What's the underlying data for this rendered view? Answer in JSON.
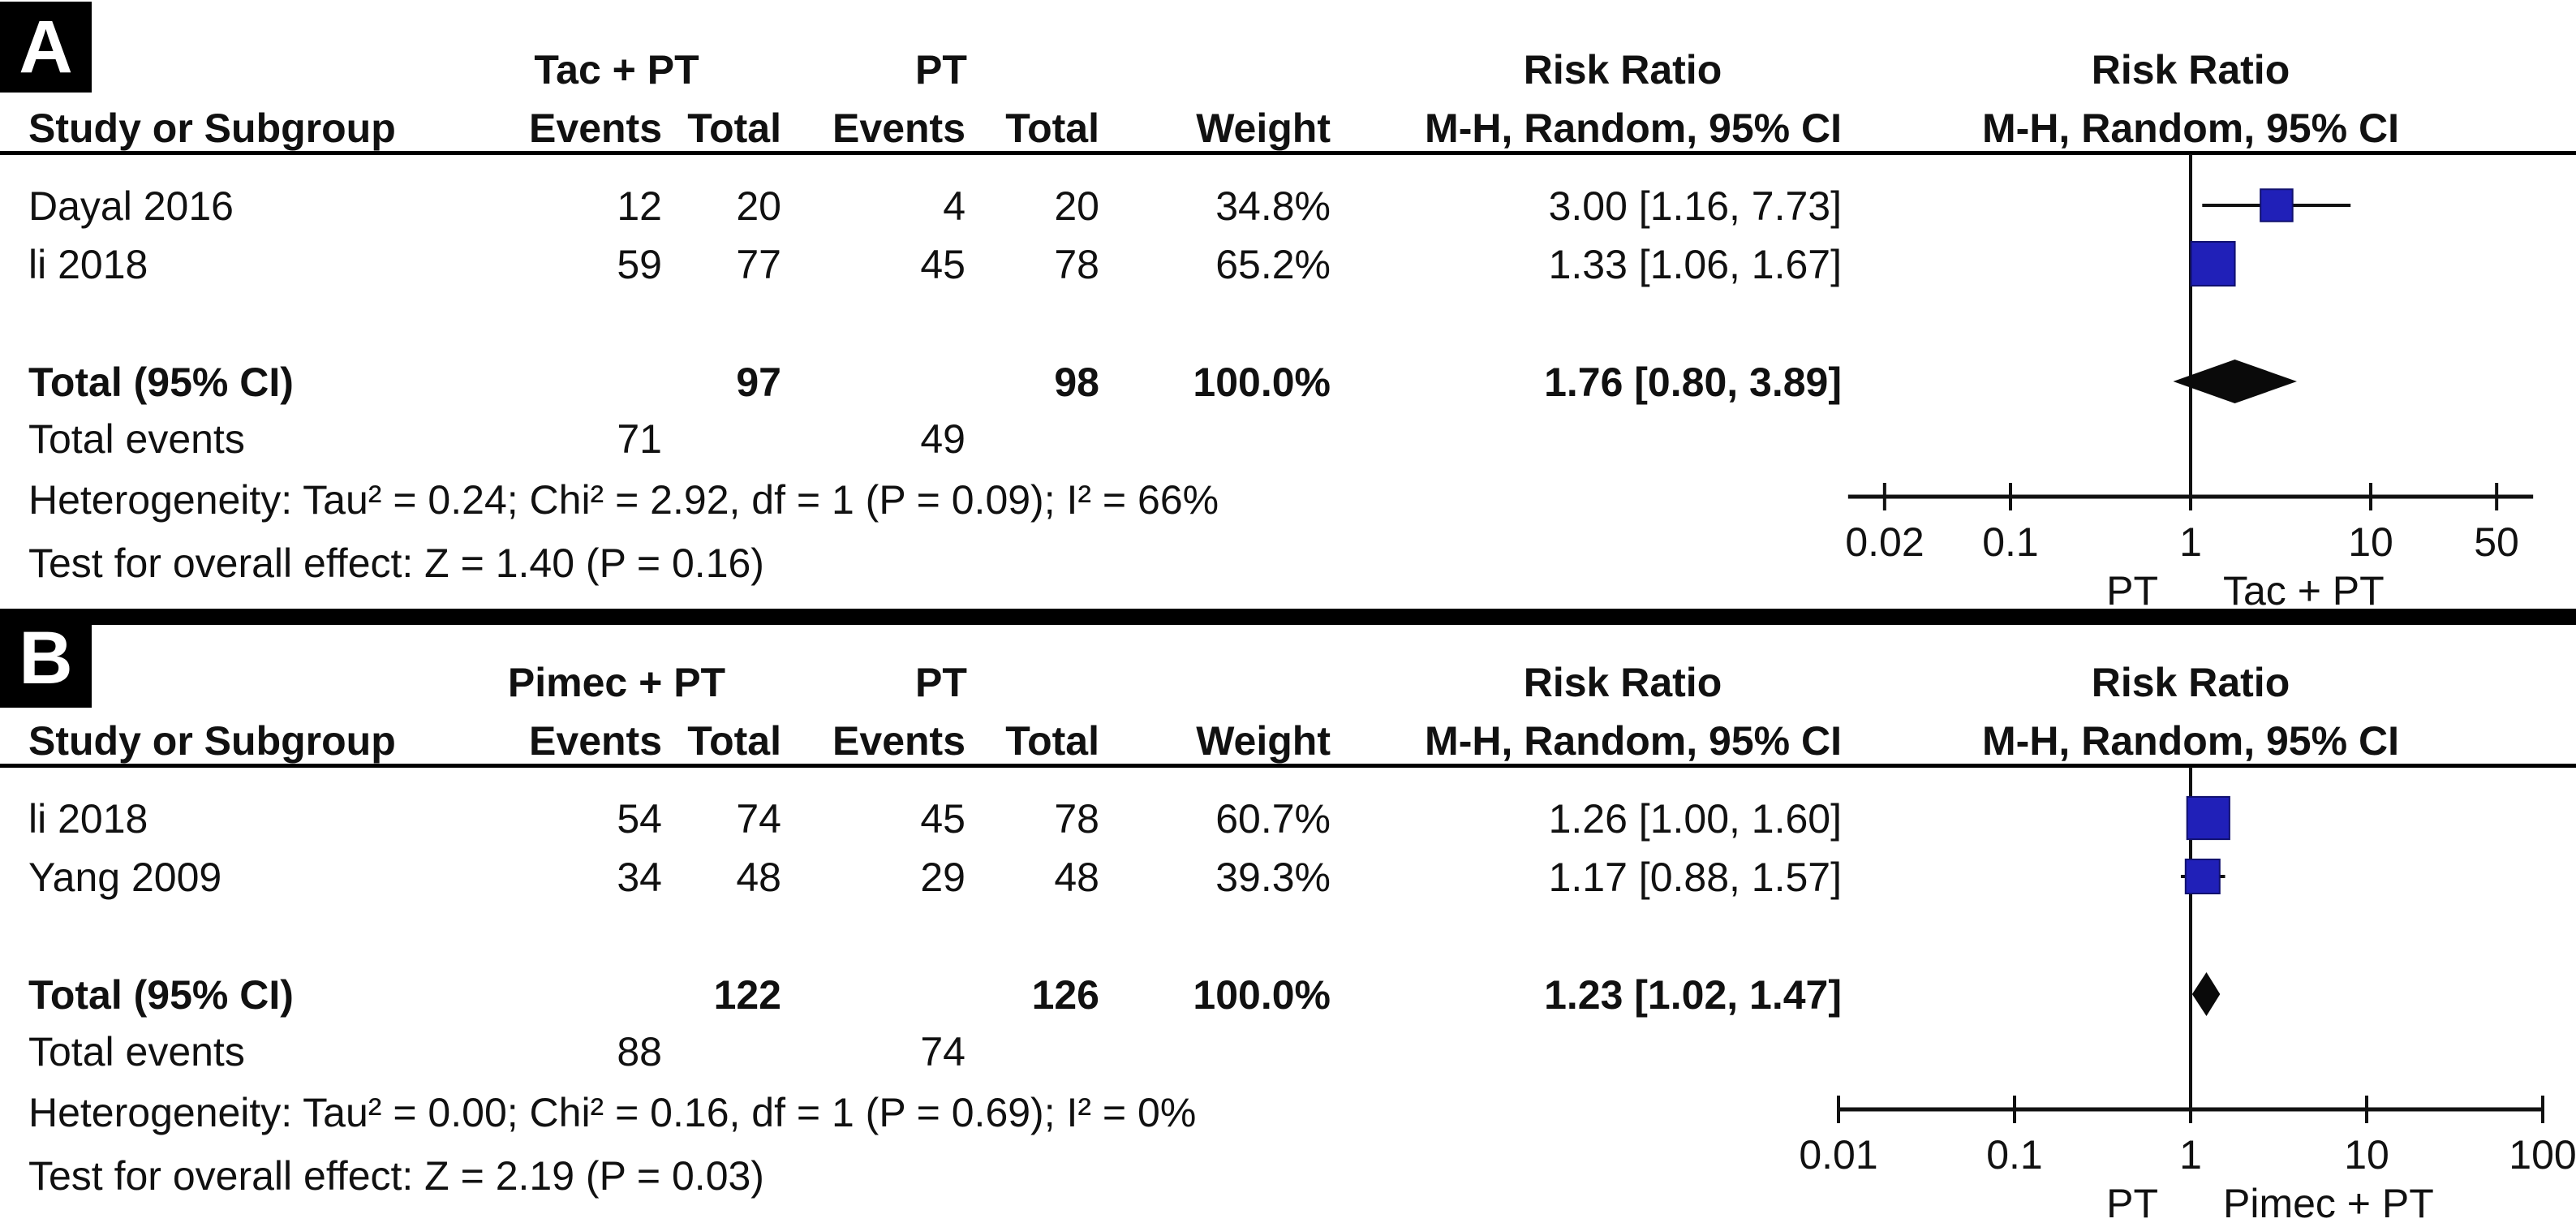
{
  "figure_title": "Forest plot — Risk Ratio, M-H Random effects, 95% CI",
  "colors": {
    "square": "#2020b8",
    "square_border": "#10106e",
    "diamond": "#0a0a0a",
    "line": "#111111",
    "panel_label_bg": "#000000",
    "panel_label_fg": "#ffffff"
  },
  "chart_data": [
    {
      "type": "forest_plot",
      "panel_label": "A",
      "effect_measure": "Risk Ratio",
      "group1": "Tac + PT",
      "group2": "PT",
      "col_study": "Study or Subgroup",
      "col_events": "Events",
      "col_total": "Total",
      "col_weight": "Weight",
      "risk_ratio_title": "Risk Ratio",
      "method_header": "M-H, Random, 95% CI",
      "studies": [
        {
          "name": "Dayal 2016",
          "events1": 12,
          "total1": 20,
          "events2": 4,
          "total2": 20,
          "weight": "34.8%",
          "weight_pct": 34.8,
          "rr_text": "3.00 [1.16, 7.73]",
          "rr": 3.0,
          "ci_low": 1.16,
          "ci_high": 7.73
        },
        {
          "name": "li 2018",
          "events1": 59,
          "total1": 77,
          "events2": 45,
          "total2": 78,
          "weight": "65.2%",
          "weight_pct": 65.2,
          "rr_text": "1.33 [1.06, 1.67]",
          "rr": 1.33,
          "ci_low": 1.06,
          "ci_high": 1.67
        }
      ],
      "total_row": {
        "label": "Total (95% CI)",
        "total1": 97,
        "total2": 98,
        "weight": "100.0%",
        "rr_text": "1.76 [0.80, 3.89]",
        "rr": 1.76,
        "ci_low": 0.8,
        "ci_high": 3.89
      },
      "total_events": {
        "label": "Total events",
        "events1": 71,
        "events2": 49
      },
      "heterogeneity": "Heterogeneity: Tau² = 0.24; Chi² = 2.92, df = 1 (P = 0.09); I² = 66%",
      "overall_effect": "Test for overall effect: Z = 1.40 (P = 0.16)",
      "axis": {
        "scale": "log",
        "ticks": [
          0.02,
          0.1,
          1,
          10,
          50
        ],
        "tick_labels": [
          "0.02",
          "0.1",
          "1",
          "10",
          "50"
        ],
        "favours_left": "PT",
        "favours_right": "Tac + PT"
      }
    },
    {
      "type": "forest_plot",
      "panel_label": "B",
      "effect_measure": "Risk Ratio",
      "group1": "Pimec + PT",
      "group2": "PT",
      "col_study": "Study or Subgroup",
      "col_events": "Events",
      "col_total": "Total",
      "col_weight": "Weight",
      "risk_ratio_title": "Risk Ratio",
      "method_header": "M-H, Random, 95% CI",
      "studies": [
        {
          "name": "li 2018",
          "events1": 54,
          "total1": 74,
          "events2": 45,
          "total2": 78,
          "weight": "60.7%",
          "weight_pct": 60.7,
          "rr_text": "1.26 [1.00, 1.60]",
          "rr": 1.26,
          "ci_low": 1.0,
          "ci_high": 1.6
        },
        {
          "name": "Yang 2009",
          "events1": 34,
          "total1": 48,
          "events2": 29,
          "total2": 48,
          "weight": "39.3%",
          "weight_pct": 39.3,
          "rr_text": "1.17 [0.88, 1.57]",
          "rr": 1.17,
          "ci_low": 0.88,
          "ci_high": 1.57
        }
      ],
      "total_row": {
        "label": "Total (95% CI)",
        "total1": 122,
        "total2": 126,
        "weight": "100.0%",
        "rr_text": "1.23 [1.02, 1.47]",
        "rr": 1.23,
        "ci_low": 1.02,
        "ci_high": 1.47
      },
      "total_events": {
        "label": "Total events",
        "events1": 88,
        "events2": 74
      },
      "heterogeneity": "Heterogeneity: Tau² = 0.00; Chi² = 0.16, df = 1 (P = 0.69); I² = 0%",
      "overall_effect": "Test for overall effect: Z = 2.19 (P = 0.03)",
      "axis": {
        "scale": "log",
        "ticks": [
          0.01,
          0.1,
          1,
          10,
          100
        ],
        "tick_labels": [
          "0.01",
          "0.1",
          "1",
          "10",
          "100"
        ],
        "favours_left": "PT",
        "favours_right": "Pimec + PT"
      }
    }
  ]
}
